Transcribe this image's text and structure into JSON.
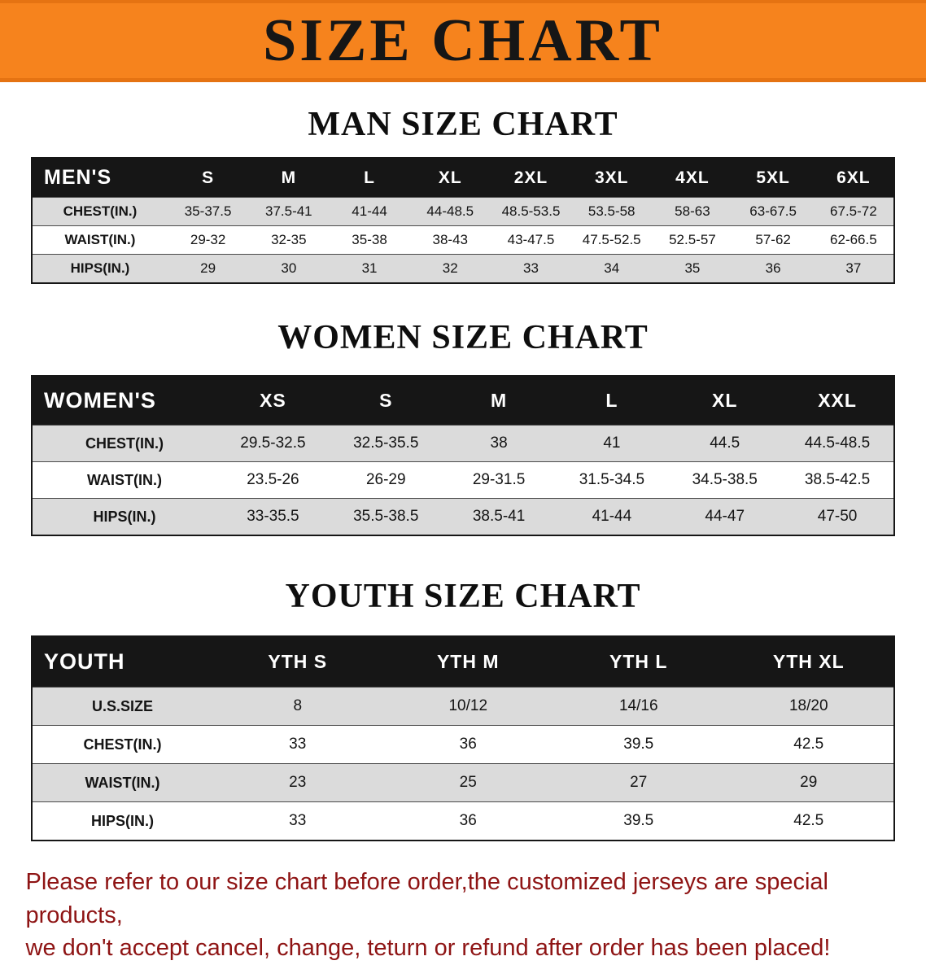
{
  "banner": {
    "title": "SIZE CHART",
    "bg_color": "#f6831d",
    "text_color": "#161616"
  },
  "sections": [
    {
      "heading": "MAN SIZE CHART",
      "table": {
        "label": "MEN'S",
        "columns": [
          "S",
          "M",
          "L",
          "XL",
          "2XL",
          "3XL",
          "4XL",
          "5XL",
          "6XL"
        ],
        "rows": [
          {
            "label": "CHEST(IN.)",
            "values": [
              "35-37.5",
              "37.5-41",
              "41-44",
              "44-48.5",
              "48.5-53.5",
              "53.5-58",
              "58-63",
              "63-67.5",
              "67.5-72"
            ]
          },
          {
            "label": "WAIST(IN.)",
            "values": [
              "29-32",
              "32-35",
              "35-38",
              "38-43",
              "43-47.5",
              "47.5-52.5",
              "52.5-57",
              "57-62",
              "62-66.5"
            ]
          },
          {
            "label": "HIPS(IN.)",
            "values": [
              "29",
              "30",
              "31",
              "32",
              "33",
              "34",
              "35",
              "36",
              "37"
            ]
          }
        ]
      }
    },
    {
      "heading": "WOMEN SIZE CHART",
      "table": {
        "label": "WOMEN'S",
        "columns": [
          "XS",
          "S",
          "M",
          "L",
          "XL",
          "XXL"
        ],
        "rows": [
          {
            "label": "CHEST(IN.)",
            "values": [
              "29.5-32.5",
              "32.5-35.5",
              "38",
              "41",
              "44.5",
              "44.5-48.5"
            ]
          },
          {
            "label": "WAIST(IN.)",
            "values": [
              "23.5-26",
              "26-29",
              "29-31.5",
              "31.5-34.5",
              "34.5-38.5",
              "38.5-42.5"
            ]
          },
          {
            "label": "HIPS(IN.)",
            "values": [
              "33-35.5",
              "35.5-38.5",
              "38.5-41",
              "41-44",
              "44-47",
              "47-50"
            ]
          }
        ]
      }
    },
    {
      "heading": "YOUTH SIZE CHART",
      "table": {
        "label": "YOUTH",
        "columns": [
          "YTH S",
          "YTH M",
          "YTH L",
          "YTH XL"
        ],
        "rows": [
          {
            "label": "U.S.SIZE",
            "values": [
              "8",
              "10/12",
              "14/16",
              "18/20"
            ]
          },
          {
            "label": "CHEST(IN.)",
            "values": [
              "33",
              "36",
              "39.5",
              "42.5"
            ]
          },
          {
            "label": "WAIST(IN.)",
            "values": [
              "23",
              "25",
              "27",
              "29"
            ]
          },
          {
            "label": "HIPS(IN.)",
            "values": [
              "33",
              "36",
              "39.5",
              "42.5"
            ]
          }
        ]
      }
    }
  ],
  "footer": {
    "line1": "Please refer to our size chart before order,the customized jerseys are special products,",
    "line2": "we don't accept cancel, change, teturn or refund after order has been placed!",
    "text_color": "#8e1414"
  },
  "colors": {
    "table_header_bg": "#161616",
    "table_header_text": "#ffffff",
    "row_shaded_bg": "#dbdbdb",
    "row_plain_bg": "#ffffff"
  }
}
